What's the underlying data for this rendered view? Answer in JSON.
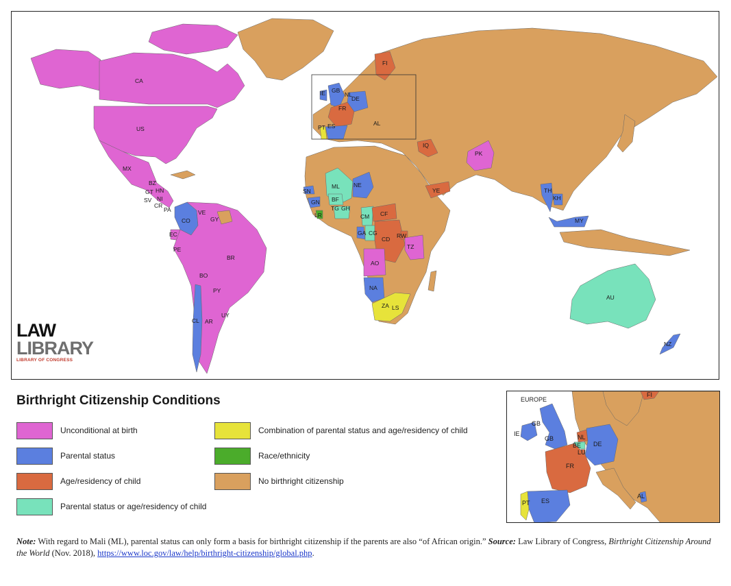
{
  "colors": {
    "unconditional": "#DF65D2",
    "parental": "#5B7FDF",
    "age_residency": "#D96A40",
    "parental_or_age": "#78E2BB",
    "combination": "#E7E33A",
    "race": "#4BAC2B",
    "none": "#D9A05E"
  },
  "map": {
    "country_codes": [
      "CA",
      "US",
      "MX",
      "BZ",
      "GT",
      "HN",
      "SV",
      "NI",
      "CR",
      "PA",
      "CO",
      "VE",
      "GY",
      "EC",
      "PE",
      "BR",
      "BO",
      "PY",
      "UY",
      "CL",
      "AR",
      "IE",
      "GB",
      "NL",
      "DE",
      "FR",
      "PT",
      "ES",
      "AL",
      "FI",
      "IQ",
      "PK",
      "YE",
      "ML",
      "NE",
      "SN",
      "GN",
      "BF",
      "LR",
      "TG",
      "GH",
      "CM",
      "CF",
      "GA",
      "CG",
      "CD",
      "RW",
      "TZ",
      "AO",
      "NA",
      "ZA",
      "LS",
      "TH",
      "KH",
      "MY",
      "AU",
      "NZ"
    ]
  },
  "logo": {
    "line1": "LAW",
    "line2": "LIBRARY",
    "line3": "LIBRARY OF CONGRESS"
  },
  "legend": {
    "title": "Birthright Citizenship Conditions",
    "items": [
      {
        "label": "Unconditional at birth",
        "color_key": "unconditional"
      },
      {
        "label": "Parental status",
        "color_key": "parental"
      },
      {
        "label": "Age/residency of child",
        "color_key": "age_residency"
      },
      {
        "label": "Parental status or age/residency of child",
        "color_key": "parental_or_age"
      },
      {
        "label": "Combination of parental status and age/residency of child",
        "color_key": "combination"
      },
      {
        "label": "Race/ethnicity",
        "color_key": "race"
      },
      {
        "label": "No birthright citizenship",
        "color_key": "none"
      }
    ]
  },
  "inset": {
    "title": "EUROPE",
    "codes": [
      "FI",
      "GB",
      "IE",
      "GB",
      "NL",
      "BE",
      "LU",
      "DE",
      "FR",
      "ES",
      "PT",
      "AL"
    ]
  },
  "note": {
    "lead": "Note:",
    "text1": " With regard to Mali (ML), parental status can only form a basis for birthright citizenship if the parents are also “of African origin.” ",
    "source_lead": "Source:",
    "text2": " Law Library of Congress, ",
    "publication": "Birthright Citizenship Around the World",
    "text3": " (Nov. 2018), ",
    "url": "https://www.loc.gov/law/help/birthright-citizenship/global.php",
    "text4": "."
  }
}
